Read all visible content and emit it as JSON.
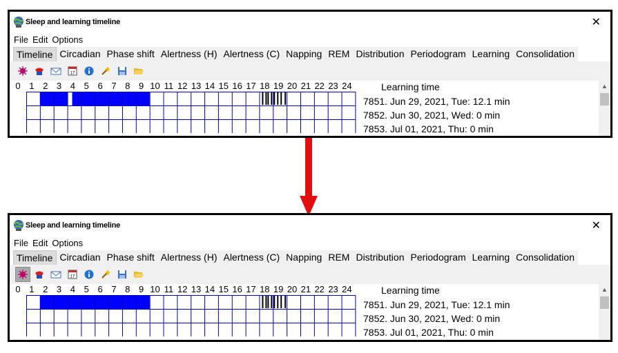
{
  "window": {
    "title": "Sleep and learning timeline",
    "close_glyph": "✕"
  },
  "menu": [
    "File",
    "Edit",
    "Options"
  ],
  "tabs": [
    {
      "label": "Timeline",
      "active": true
    },
    {
      "label": "Circadian",
      "active": false
    },
    {
      "label": "Phase shift",
      "active": false
    },
    {
      "label": "Alertness (H)",
      "active": false
    },
    {
      "label": "Alertness (C)",
      "active": false
    },
    {
      "label": "Napping",
      "active": false
    },
    {
      "label": "REM",
      "active": false
    },
    {
      "label": "Distribution",
      "active": false
    },
    {
      "label": "Periodogram",
      "active": false
    },
    {
      "label": "Learning",
      "active": false
    },
    {
      "label": "Consolidation",
      "active": false
    }
  ],
  "toolbar_icons": [
    "virus-icon",
    "grabber-icon",
    "mail-icon",
    "calendar-icon",
    "info-icon",
    "wand-icon",
    "save-icon",
    "open-folder-icon"
  ],
  "hour_labels": [
    "0",
    "1",
    "2",
    "3",
    "4",
    "5",
    "6",
    "7",
    "8",
    "9",
    "10",
    "11",
    "12",
    "13",
    "14",
    "15",
    "16",
    "17",
    "18",
    "19",
    "20",
    "21",
    "22",
    "23",
    "24"
  ],
  "learning": {
    "title": "Learning time",
    "entries": [
      "7851. Jun 29, 2021, Tue: 12.1 min",
      "7852. Jun 30, 2021, Wed: 0 min",
      "7853. Jul 01, 2021, Thu: 0 min"
    ]
  },
  "colors": {
    "sleep_block": "#0000ff",
    "grid_line": "#0000aa",
    "arrow": "#e01010"
  },
  "states": {
    "before": {
      "sleep_blocks_hours": [
        [
          1,
          3
        ],
        [
          3.35,
          9
        ]
      ],
      "learning_marks_hours": [
        17.2,
        17.45,
        17.6,
        17.85,
        18.05,
        18.3,
        18.55,
        18.85
      ],
      "first_toolbar_pressed": false
    },
    "after": {
      "sleep_blocks_hours": [
        [
          1,
          9
        ]
      ],
      "learning_marks_hours": [
        17.2,
        17.45,
        17.6,
        17.85,
        18.05,
        18.3,
        18.55,
        18.85
      ],
      "first_toolbar_pressed": true
    }
  }
}
